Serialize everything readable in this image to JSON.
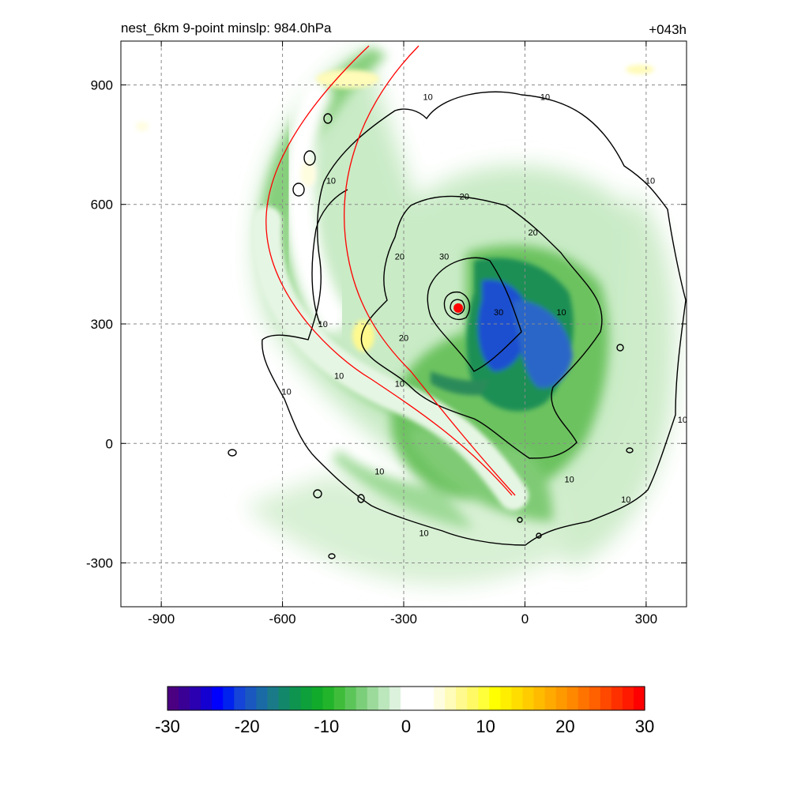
{
  "title_left": "nest_6km  9-point minslp: 984.0hPa",
  "title_right": "+043h",
  "chart_data": {
    "type": "heatmap",
    "title": "nest_6km  9-point minslp: 984.0hPa",
    "valid_time_label": "+043h",
    "xlim": [
      -1000,
      400
    ],
    "ylim": [
      -410,
      1010
    ],
    "x_ticks": [
      -900,
      -600,
      -300,
      0,
      300
    ],
    "y_ticks": [
      -300,
      0,
      300,
      600,
      900
    ],
    "grid": "dashed",
    "center": {
      "x": -165,
      "y": 340,
      "color": "#ff0000"
    },
    "contour_levels": [
      10,
      20,
      30
    ],
    "contour_labels": [
      {
        "text": "10",
        "x": 50,
        "y": 870
      },
      {
        "text": "10",
        "x": -240,
        "y": 870
      },
      {
        "text": "10",
        "x": 310,
        "y": 660
      },
      {
        "text": "10",
        "x": -480,
        "y": 660
      },
      {
        "text": "10",
        "x": -500,
        "y": 300
      },
      {
        "text": "10",
        "x": -460,
        "y": 170
      },
      {
        "text": "10",
        "x": -310,
        "y": 150
      },
      {
        "text": "10",
        "x": -590,
        "y": 130
      },
      {
        "text": "10",
        "x": 90,
        "y": 330
      },
      {
        "text": "10",
        "x": 390,
        "y": 60
      },
      {
        "text": "10",
        "x": -360,
        "y": -70
      },
      {
        "text": "10",
        "x": 110,
        "y": -90
      },
      {
        "text": "10",
        "x": 250,
        "y": -140
      },
      {
        "text": "10",
        "x": -250,
        "y": -225
      },
      {
        "text": "20",
        "x": -150,
        "y": 620
      },
      {
        "text": "20",
        "x": 20,
        "y": 530
      },
      {
        "text": "20",
        "x": -310,
        "y": 470
      },
      {
        "text": "20",
        "x": -300,
        "y": 265
      },
      {
        "text": "30",
        "x": -200,
        "y": 470
      },
      {
        "text": "30",
        "x": -65,
        "y": 330
      }
    ],
    "colorbar": {
      "min": -30,
      "max": 30,
      "tick_labels": [
        "-30",
        "-20",
        "-10",
        "0",
        "10",
        "20",
        "30"
      ],
      "colors": [
        "#4b0082",
        "#3a0096",
        "#2a00b0",
        "#1400d0",
        "#0000ff",
        "#0022ee",
        "#1444d8",
        "#1a58c0",
        "#1a6aa6",
        "#1a7a88",
        "#13876a",
        "#0f9450",
        "#0ea03a",
        "#12aa2a",
        "#22b42a",
        "#3fbd3a",
        "#5cc55a",
        "#7ccf7a",
        "#9cda9c",
        "#bce6bc",
        "#dcf2dc",
        "#ffffff",
        "#ffffff",
        "#ffffff",
        "#fffde0",
        "#fffbb8",
        "#fff98e",
        "#fff966",
        "#ffff3a",
        "#ffff00",
        "#ffee00",
        "#ffdd00",
        "#ffcc00",
        "#ffbb00",
        "#ffaa00",
        "#ff9900",
        "#ff8800",
        "#ff7400",
        "#ff6000",
        "#ff4800",
        "#ff3000",
        "#ff1a00",
        "#ff0000"
      ]
    }
  }
}
